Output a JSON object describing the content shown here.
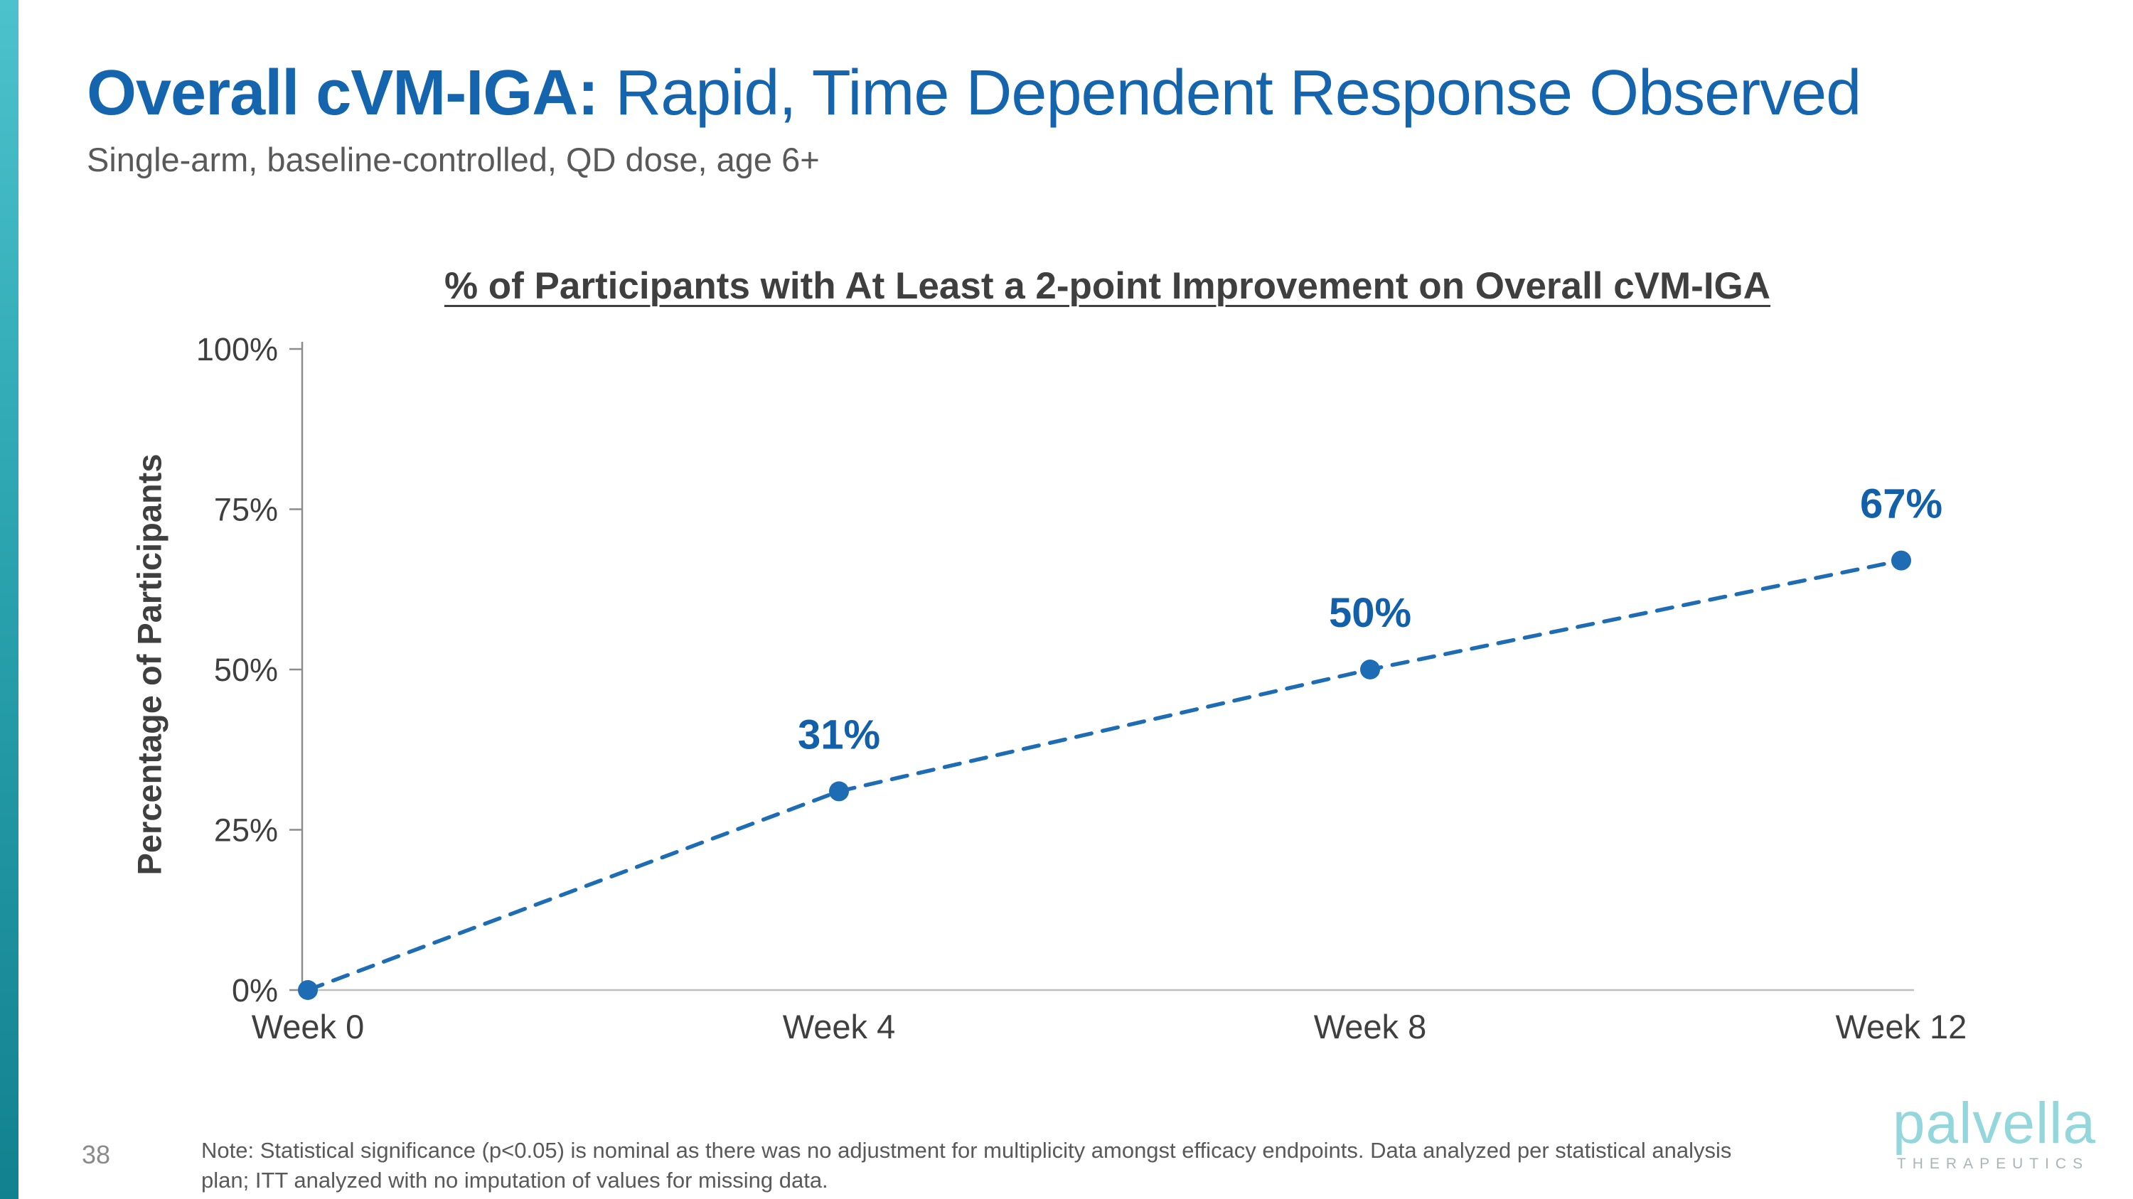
{
  "colors": {
    "title_blue": "#1565ae",
    "subtitle_gray": "#595959",
    "sidebar_teal_top": "#4cc2cc",
    "sidebar_teal_bottom": "#12818f",
    "logo_teal": "#93d7dc",
    "logo_tagline_gray": "#a9b5b6"
  },
  "header": {
    "title_bold": "Overall cVM-IGA:",
    "title_regular": "Rapid, Time Dependent Response Observed",
    "subtitle": "Single-arm, baseline-controlled, QD dose, age 6+"
  },
  "chart_data": {
    "type": "line",
    "title": "% of Participants with At Least a 2-point Improvement on Overall cVM-IGA",
    "categories": [
      "Week 0",
      "Week 4",
      "Week 8",
      "Week 12"
    ],
    "values": [
      0,
      31,
      50,
      67
    ],
    "data_labels": [
      "",
      "31%",
      "50%",
      "67%"
    ],
    "ylabel": "Percentage of Participants",
    "xlabel": "",
    "ylim": [
      0,
      100
    ],
    "yticks": [
      {
        "value": 0,
        "label": "0%"
      },
      {
        "value": 25,
        "label": "25%"
      },
      {
        "value": 50,
        "label": "50%"
      },
      {
        "value": 75,
        "label": "75%"
      },
      {
        "value": 100,
        "label": "100%"
      }
    ],
    "grid": false,
    "legend": "none",
    "line_style": "dashed",
    "marker": "circle",
    "line_color": "#1e6db4",
    "data_label_color": "#1360aa"
  },
  "footer": {
    "page_number": "38",
    "note": "Note: Statistical significance (p<0.05) is nominal as there was no adjustment for multiplicity amongst efficacy endpoints. Data analyzed per statistical analysis plan; ITT analyzed with no imputation of values for missing data."
  },
  "logo": {
    "name": "palvella",
    "tagline": "THERAPEUTICS"
  }
}
